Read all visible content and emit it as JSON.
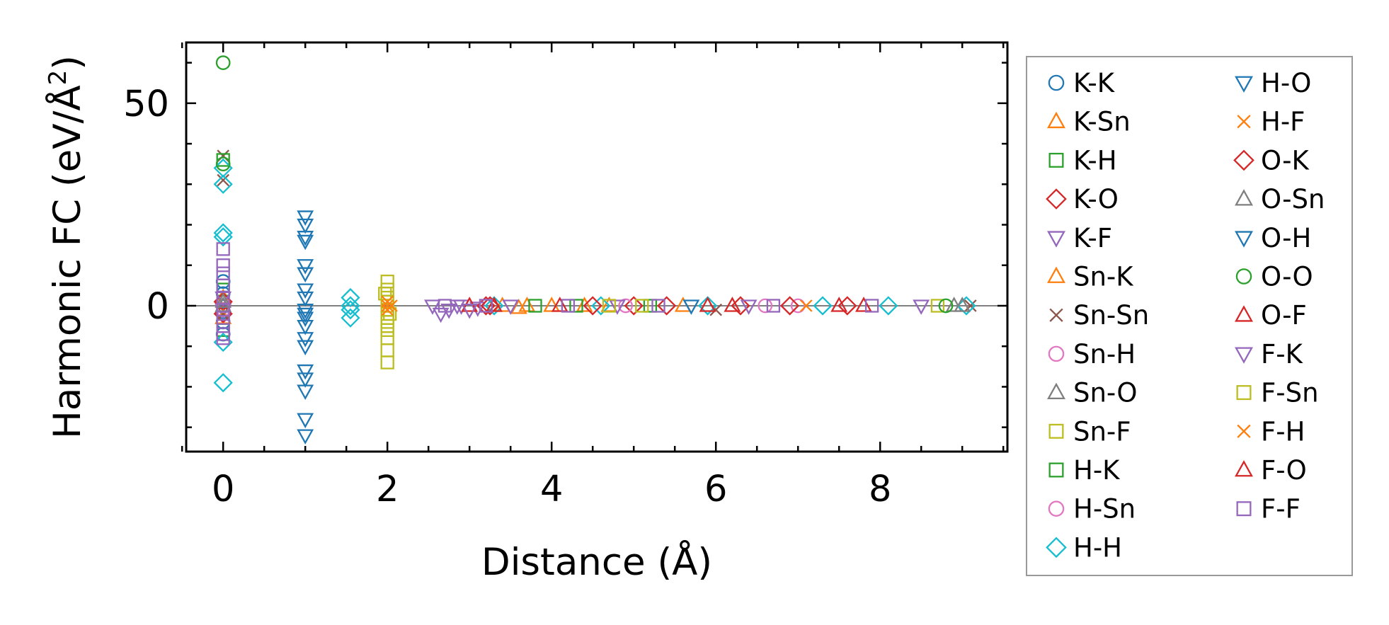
{
  "chart_data": {
    "type": "scatter",
    "title": "",
    "xlabel": "Distance (Å)",
    "ylabel_main": "Harmonic FC (eV/Å",
    "ylabel_sup": "2",
    "ylabel_close": ")",
    "xlim": [
      -0.45,
      9.55
    ],
    "ylim": [
      -36,
      65
    ],
    "xticks": [
      0,
      2,
      4,
      6,
      8
    ],
    "xtick_labels": [
      "0",
      "2",
      "4",
      "6",
      "8"
    ],
    "yticks": [
      0,
      50
    ],
    "ytick_labels": [
      "0",
      "50"
    ],
    "zero_line": true,
    "legend_position": "right, outside plot",
    "legend_columns": 2,
    "series": [
      {
        "name": "K-K",
        "marker": "circle",
        "color": "#1f77b4",
        "points": [
          [
            0,
            -1.5
          ],
          [
            0,
            3
          ],
          [
            0,
            -4
          ],
          [
            0,
            6
          ],
          [
            0,
            -7
          ],
          [
            0,
            1
          ],
          [
            0,
            0
          ],
          [
            0,
            -2
          ]
        ]
      },
      {
        "name": "K-Sn",
        "marker": "triangle-up",
        "color": "#ff7f0e",
        "points": [
          [
            0,
            2
          ],
          [
            0,
            -3
          ],
          [
            3.4,
            0
          ],
          [
            3.6,
            -0.5
          ],
          [
            3.7,
            0
          ],
          [
            4.4,
            0
          ],
          [
            4.7,
            0
          ]
        ]
      },
      {
        "name": "K-H",
        "marker": "square",
        "color": "#2ca02c",
        "points": [
          [
            0,
            4
          ],
          [
            0,
            -6
          ],
          [
            3.8,
            0
          ],
          [
            4.3,
            0
          ]
        ]
      },
      {
        "name": "K-O",
        "marker": "diamond",
        "color": "#d62728",
        "points": [
          [
            0,
            1
          ],
          [
            0,
            -2
          ],
          [
            3.2,
            0
          ],
          [
            5.0,
            0
          ],
          [
            6.3,
            0
          ]
        ]
      },
      {
        "name": "K-F",
        "marker": "triangle-down",
        "color": "#9467bd",
        "points": [
          [
            0,
            2
          ],
          [
            0,
            -1
          ],
          [
            2.9,
            0
          ],
          [
            3.1,
            -0.5
          ]
        ]
      },
      {
        "name": "Sn-K",
        "marker": "triangle-up",
        "color": "#ff7f0e",
        "points": [
          [
            0,
            -3
          ],
          [
            4.0,
            0
          ],
          [
            5.6,
            0
          ]
        ]
      },
      {
        "name": "Sn-Sn",
        "marker": "x",
        "color": "#8c564b",
        "points": [
          [
            0,
            37
          ],
          [
            0,
            31
          ],
          [
            0,
            -2
          ],
          [
            6.0,
            -1
          ],
          [
            9.1,
            0
          ]
        ]
      },
      {
        "name": "Sn-H",
        "marker": "circle",
        "color": "#e377c2",
        "points": [
          [
            0,
            0
          ],
          [
            4.9,
            0
          ],
          [
            7.0,
            0
          ]
        ]
      },
      {
        "name": "Sn-O",
        "marker": "triangle-up",
        "color": "#7f7f7f",
        "points": [
          [
            0,
            1
          ],
          [
            8.9,
            0
          ]
        ]
      },
      {
        "name": "Sn-F",
        "marker": "square",
        "color": "#bcbd22",
        "points": [
          [
            2.0,
            6
          ],
          [
            2.0,
            4
          ],
          [
            2.0,
            2
          ],
          [
            2.0,
            1
          ],
          [
            2.0,
            -1
          ],
          [
            2.0,
            -3
          ],
          [
            2.0,
            -5
          ],
          [
            2.0,
            -8
          ],
          [
            2.0,
            -11
          ],
          [
            2.0,
            -14
          ],
          [
            1.97,
            3
          ],
          [
            2.03,
            -2
          ],
          [
            8.7,
            0
          ]
        ]
      },
      {
        "name": "H-K",
        "marker": "square",
        "color": "#2ca02c",
        "points": [
          [
            0,
            36
          ],
          [
            5.2,
            0
          ]
        ]
      },
      {
        "name": "H-Sn",
        "marker": "circle",
        "color": "#e377c2",
        "points": [
          [
            0,
            -1
          ],
          [
            6.6,
            0
          ]
        ]
      },
      {
        "name": "H-H",
        "marker": "diamond",
        "color": "#17becf",
        "points": [
          [
            0,
            34
          ],
          [
            0,
            30
          ],
          [
            0,
            18
          ],
          [
            0,
            17
          ],
          [
            0,
            -9
          ],
          [
            0,
            -19
          ],
          [
            1.55,
            2
          ],
          [
            1.55,
            0
          ],
          [
            1.55,
            -3
          ],
          [
            1.55,
            -1
          ],
          [
            3.3,
            0
          ],
          [
            4.6,
            0
          ],
          [
            5.9,
            0
          ],
          [
            7.3,
            0
          ],
          [
            8.1,
            0
          ],
          [
            9.05,
            0
          ]
        ]
      },
      {
        "name": "H-O",
        "marker": "triangle-down",
        "color": "#1f77b4",
        "points": [
          [
            1.0,
            22
          ],
          [
            1.0,
            20
          ],
          [
            1.0,
            17
          ],
          [
            1.0,
            16
          ],
          [
            1.0,
            10
          ],
          [
            1.0,
            8
          ],
          [
            1.0,
            4
          ],
          [
            1.0,
            2
          ],
          [
            1.0,
            -2
          ],
          [
            1.0,
            -3
          ],
          [
            1.0,
            -5
          ],
          [
            1.0,
            -8
          ],
          [
            1.0,
            -10
          ],
          [
            1.0,
            -16
          ],
          [
            1.0,
            -18
          ],
          [
            1.0,
            -21
          ],
          [
            1.0,
            -28
          ],
          [
            1.0,
            -32
          ]
        ]
      },
      {
        "name": "H-F",
        "marker": "x",
        "color": "#ff7f0e",
        "points": [
          [
            2.0,
            1
          ],
          [
            2.0,
            -1
          ],
          [
            2.05,
            0
          ]
        ]
      },
      {
        "name": "O-K",
        "marker": "diamond",
        "color": "#d62728",
        "points": [
          [
            3.25,
            0
          ],
          [
            4.5,
            0
          ],
          [
            5.4,
            0
          ],
          [
            6.9,
            0
          ],
          [
            7.6,
            0
          ]
        ]
      },
      {
        "name": "O-Sn",
        "marker": "triangle-up",
        "color": "#7f7f7f",
        "points": [
          [
            0,
            0
          ],
          [
            9.0,
            0
          ]
        ]
      },
      {
        "name": "O-H",
        "marker": "triangle-down",
        "color": "#1f77b4",
        "points": [
          [
            1.0,
            -1
          ],
          [
            5.7,
            0
          ]
        ]
      },
      {
        "name": "O-O",
        "marker": "circle",
        "color": "#2ca02c",
        "points": [
          [
            0,
            60
          ],
          [
            0,
            35
          ],
          [
            8.8,
            0
          ]
        ]
      },
      {
        "name": "O-F",
        "marker": "triangle-up",
        "color": "#d62728",
        "points": [
          [
            3.0,
            0
          ],
          [
            4.1,
            0
          ],
          [
            6.2,
            0
          ],
          [
            7.5,
            0
          ]
        ]
      },
      {
        "name": "F-K",
        "marker": "triangle-down",
        "color": "#9467bd",
        "points": [
          [
            2.55,
            0
          ],
          [
            2.65,
            -2
          ],
          [
            2.75,
            -1
          ],
          [
            2.85,
            0
          ],
          [
            3.0,
            -1
          ],
          [
            3.5,
            0
          ],
          [
            4.8,
            0
          ],
          [
            6.4,
            0
          ],
          [
            8.5,
            0
          ]
        ]
      },
      {
        "name": "F-Sn",
        "marker": "square",
        "color": "#bcbd22",
        "points": [
          [
            2.0,
            -4
          ],
          [
            2.0,
            -6
          ],
          [
            4.7,
            0
          ],
          [
            5.1,
            0
          ]
        ]
      },
      {
        "name": "F-H",
        "marker": "x",
        "color": "#ff7f0e",
        "points": [
          [
            2.0,
            0
          ],
          [
            7.1,
            0
          ]
        ]
      },
      {
        "name": "F-O",
        "marker": "triangle-up",
        "color": "#d62728",
        "points": [
          [
            3.3,
            0
          ],
          [
            5.9,
            0
          ],
          [
            7.8,
            0
          ]
        ]
      },
      {
        "name": "F-F",
        "marker": "square",
        "color": "#9467bd",
        "points": [
          [
            0,
            14
          ],
          [
            0,
            10
          ],
          [
            0,
            8
          ],
          [
            0,
            5
          ],
          [
            0,
            2
          ],
          [
            0,
            -1
          ],
          [
            0,
            -3
          ],
          [
            0,
            -5
          ],
          [
            0,
            -7
          ],
          [
            0,
            -8
          ],
          [
            2.7,
            0
          ],
          [
            3.2,
            0
          ],
          [
            4.2,
            0
          ],
          [
            5.3,
            0
          ],
          [
            6.7,
            0
          ],
          [
            7.9,
            0
          ]
        ]
      }
    ]
  }
}
